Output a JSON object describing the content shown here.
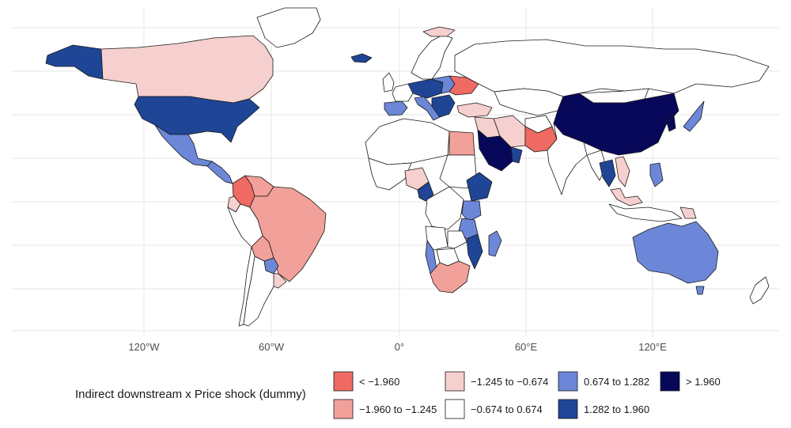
{
  "colors": {
    "c_lt_m1960": "#ee6a63",
    "c_m1960_m1245": "#f2a09a",
    "c_m1245_m0674": "#f6d0ce",
    "c_m0674_0674": "#ffffff",
    "c_0674_1282": "#6c87d8",
    "c_1282_1960": "#1f4596",
    "c_gt_1960": "#07085a"
  },
  "axis": {
    "x_ticks": [
      "120°W",
      "60°W",
      "0°",
      "60°E",
      "120°E"
    ]
  },
  "legend": {
    "title": "Indirect downstream x Price shock (dummy)",
    "items": [
      {
        "label": "< −1.960",
        "color": "#ee6a63"
      },
      {
        "label": "−1.960 to −1.245",
        "color": "#f2a09a"
      },
      {
        "label": "−1.245 to −0.674",
        "color": "#f6d0ce"
      },
      {
        "label": "−0.674 to 0.674",
        "color": "#ffffff"
      },
      {
        "label": "0.674 to 1.282",
        "color": "#6c87d8"
      },
      {
        "label": "1.282 to 1.960",
        "color": "#1f4596"
      },
      {
        "label": "> 1.960",
        "color": "#07085a"
      }
    ]
  },
  "regions": [
    {
      "name": "Alaska",
      "cls": "c_1282_1960"
    },
    {
      "name": "Canada",
      "cls": "c_m1245_m0674"
    },
    {
      "name": "Greenland",
      "cls": "c_m0674_0674"
    },
    {
      "name": "United States",
      "cls": "c_1282_1960"
    },
    {
      "name": "Mexico",
      "cls": "c_0674_1282"
    },
    {
      "name": "Central America",
      "cls": "c_0674_1282"
    },
    {
      "name": "Colombia",
      "cls": "c_lt_m1960"
    },
    {
      "name": "Venezuela",
      "cls": "c_m1960_m1245"
    },
    {
      "name": "Ecuador",
      "cls": "c_m1245_m0674"
    },
    {
      "name": "Peru",
      "cls": "c_m0674_0674"
    },
    {
      "name": "Brazil",
      "cls": "c_m1960_m1245"
    },
    {
      "name": "Bolivia",
      "cls": "c_m1960_m1245"
    },
    {
      "name": "Paraguay",
      "cls": "c_0674_1282"
    },
    {
      "name": "Chile",
      "cls": "c_m0674_0674"
    },
    {
      "name": "Argentina",
      "cls": "c_m0674_0674"
    },
    {
      "name": "Uruguay",
      "cls": "c_m1245_m0674"
    },
    {
      "name": "Iceland",
      "cls": "c_1282_1960"
    },
    {
      "name": "Scandinavia",
      "cls": "c_m0674_0674"
    },
    {
      "name": "Norway Coast",
      "cls": "c_m1245_m0674"
    },
    {
      "name": "United Kingdom",
      "cls": "c_m0674_0674"
    },
    {
      "name": "Spain/Portugal",
      "cls": "c_0674_1282"
    },
    {
      "name": "France",
      "cls": "c_m0674_0674"
    },
    {
      "name": "Central Europe",
      "cls": "c_1282_1960"
    },
    {
      "name": "Poland",
      "cls": "c_0674_1282"
    },
    {
      "name": "Italy",
      "cls": "c_0674_1282"
    },
    {
      "name": "Ukraine",
      "cls": "c_lt_m1960"
    },
    {
      "name": "Balkans",
      "cls": "c_1282_1960"
    },
    {
      "name": "Turkey",
      "cls": "c_m1245_m0674"
    },
    {
      "name": "Russia",
      "cls": "c_m0674_0674"
    },
    {
      "name": "Kazakhstan",
      "cls": "c_m0674_0674"
    },
    {
      "name": "Mongolia",
      "cls": "c_m0674_0674"
    },
    {
      "name": "China",
      "cls": "c_gt_1960"
    },
    {
      "name": "Korea",
      "cls": "c_gt_1960"
    },
    {
      "name": "Japan",
      "cls": "c_0674_1282"
    },
    {
      "name": "Iran",
      "cls": "c_m1245_m0674"
    },
    {
      "name": "Iraq/Syria",
      "cls": "c_m1245_m0674"
    },
    {
      "name": "Saudi Arabia",
      "cls": "c_gt_1960"
    },
    {
      "name": "Oman",
      "cls": "c_1282_1960"
    },
    {
      "name": "Afghanistan",
      "cls": "c_m0674_0674"
    },
    {
      "name": "Pakistan",
      "cls": "c_lt_m1960"
    },
    {
      "name": "India",
      "cls": "c_m0674_0674"
    },
    {
      "name": "Myanmar",
      "cls": "c_m0674_0674"
    },
    {
      "name": "Thailand",
      "cls": "c_1282_1960"
    },
    {
      "name": "Vietnam",
      "cls": "c_m1245_m0674"
    },
    {
      "name": "Philippines",
      "cls": "c_0674_1282"
    },
    {
      "name": "Malaysia",
      "cls": "c_m1245_m0674"
    },
    {
      "name": "Indonesia",
      "cls": "c_m0674_0674"
    },
    {
      "name": "Papua New Guinea",
      "cls": "c_m1245_m0674"
    },
    {
      "name": "Australia",
      "cls": "c_0674_1282"
    },
    {
      "name": "Tasmania",
      "cls": "c_0674_1282"
    },
    {
      "name": "New Zealand",
      "cls": "c_m0674_0674"
    },
    {
      "name": "North Africa",
      "cls": "c_m0674_0674"
    },
    {
      "name": "Egypt",
      "cls": "c_m1960_m1245"
    },
    {
      "name": "West Africa",
      "cls": "c_m0674_0674"
    },
    {
      "name": "Nigeria",
      "cls": "c_m1245_m0674"
    },
    {
      "name": "Cameroon",
      "cls": "c_1282_1960"
    },
    {
      "name": "Sudan",
      "cls": "c_m0674_0674"
    },
    {
      "name": "Ethiopia",
      "cls": "c_1282_1960"
    },
    {
      "name": "DR Congo",
      "cls": "c_m0674_0674"
    },
    {
      "name": "Kenya",
      "cls": "c_0674_1282"
    },
    {
      "name": "Tanzania",
      "cls": "c_0674_1282"
    },
    {
      "name": "Angola",
      "cls": "c_m0674_0674"
    },
    {
      "name": "Zambia",
      "cls": "c_m0674_0674"
    },
    {
      "name": "Mozambique",
      "cls": "c_1282_1960"
    },
    {
      "name": "Namibia",
      "cls": "c_0674_1282"
    },
    {
      "name": "Botswana",
      "cls": "c_m0674_0674"
    },
    {
      "name": "South Africa",
      "cls": "c_m1960_m1245"
    },
    {
      "name": "Madagascar",
      "cls": "c_0674_1282"
    }
  ]
}
